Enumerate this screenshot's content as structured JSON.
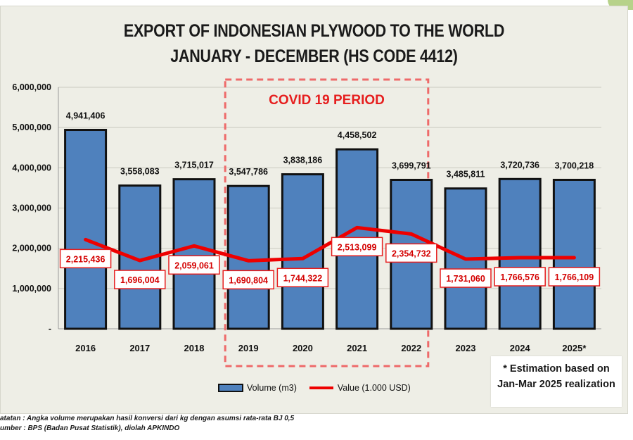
{
  "header": {
    "title_line1": "EXPORT OF INDONESIAN PLYWOOD TO THE WORLD",
    "title_line2": "JANUARY - DECEMBER (HS CODE 4412)"
  },
  "covid_label": "COVID 19 PERIOD",
  "footnote": {
    "line1": "* Estimation based on",
    "line2": "Jan-Mar 2025 realization"
  },
  "legend": {
    "volume_label": "Volume (m3)",
    "value_label": "Value (1.000 USD)"
  },
  "notes": {
    "line1": "atatan : Angka volume merupakan hasil konversi dari kg dengan asumsi rata-rata BJ 0,5",
    "line2": "umber : BPS (Badan Pusat Statistik), diolah APKINDO"
  },
  "colors": {
    "bar": "#4f81bd",
    "bar_border": "#111111",
    "line": "#ee0000",
    "covid_box": "#ee6a6a",
    "panel": "#eeeee6"
  },
  "chart_data": {
    "type": "bar",
    "title": "EXPORT OF INDONESIAN PLYWOOD TO THE WORLD JANUARY - DECEMBER (HS CODE 4412)",
    "categories": [
      "2016",
      "2017",
      "2018",
      "2019",
      "2020",
      "2021",
      "2022",
      "2023",
      "2024",
      "2025*"
    ],
    "series": [
      {
        "name": "Volume (m3)",
        "type": "bar",
        "values": [
          4941406,
          3558083,
          3715017,
          3547786,
          3838186,
          4458502,
          3699791,
          3485811,
          3720736,
          3700218
        ],
        "labels": [
          "4,941,406",
          "3,558,083",
          "3,715,017",
          "3,547,786",
          "3,838,186",
          "4,458,502",
          "3,699,791",
          "3,485,811",
          "3,720,736",
          "3,700,218"
        ]
      },
      {
        "name": "Value (1.000 USD)",
        "type": "line",
        "values": [
          2215436,
          1696004,
          2059061,
          1690804,
          1744322,
          2513099,
          2354732,
          1731060,
          1766576,
          1766109
        ],
        "labels": [
          "2,215,436",
          "1,696,004",
          "2,059,061",
          "1,690,804",
          "1,744,322",
          "2,513,099",
          "2,354,732",
          "1,731,060",
          "1,766,576",
          "1,766,109"
        ]
      }
    ],
    "ylim": [
      0,
      6000000
    ],
    "yticks": [
      0,
      1000000,
      2000000,
      3000000,
      4000000,
      5000000,
      6000000
    ],
    "ytick_labels": [
      "-",
      "1,000,000",
      "2,000,000",
      "3,000,000",
      "4,000,000",
      "5,000,000",
      "6,000,000"
    ],
    "xlabel": "",
    "ylabel": "",
    "grid": true,
    "legend_position": "bottom",
    "highlight": {
      "label": "COVID 19 PERIOD",
      "from": "2019",
      "to": "2022"
    }
  }
}
